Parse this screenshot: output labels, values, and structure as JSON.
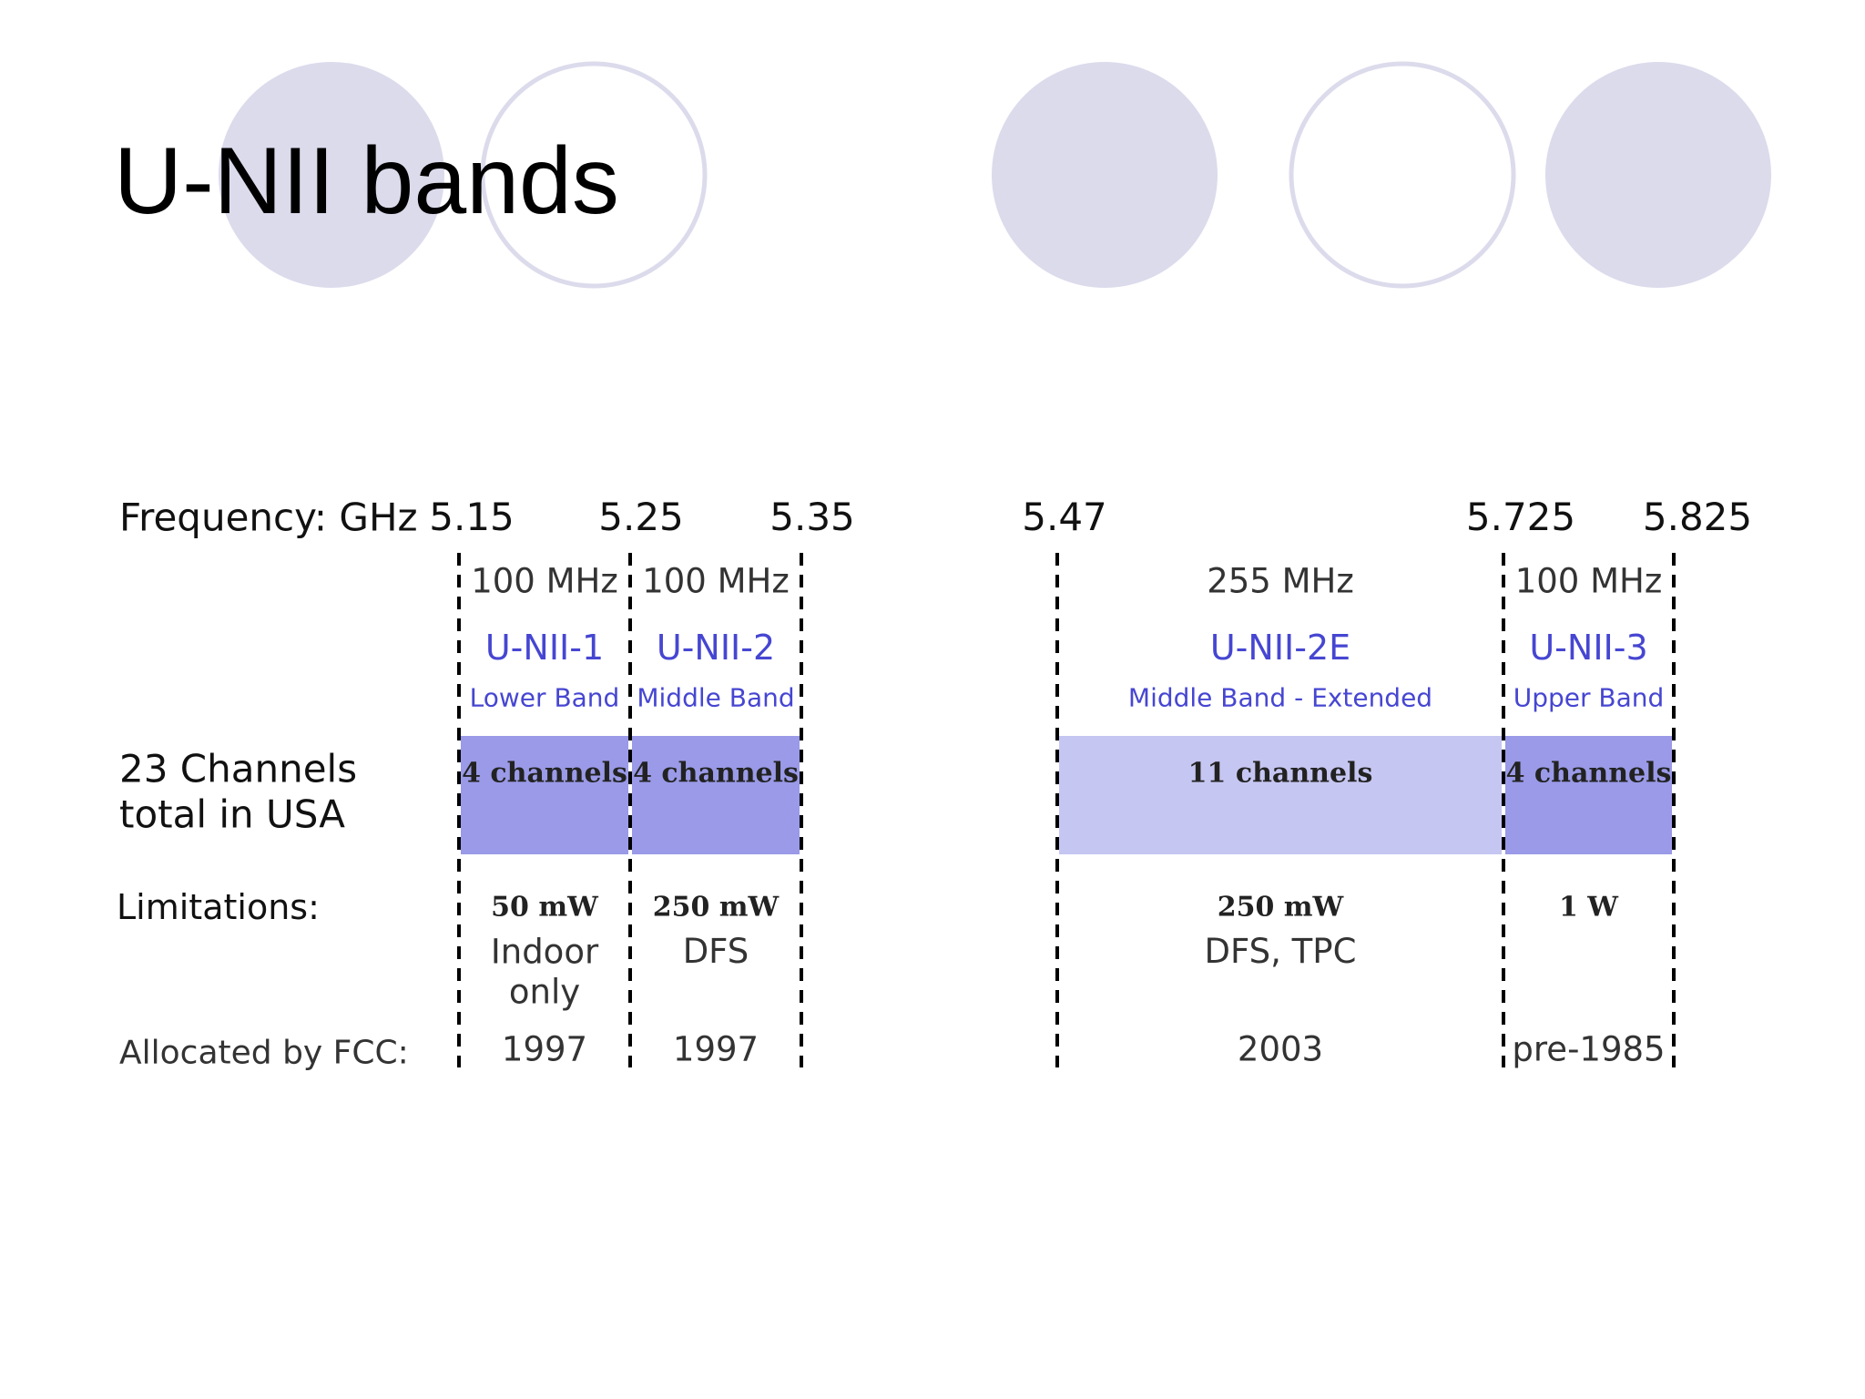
{
  "title": "U-NII bands",
  "frequency_label": "Frequency: GHz",
  "frequencies": [
    "5.15",
    "5.25",
    "5.35",
    "5.47",
    "5.725",
    "5.825"
  ],
  "channels_label": "23 Channels total in USA",
  "limitations_label": "Limitations:",
  "allocated_label": "Allocated by FCC:",
  "bands": [
    {
      "bandwidth": "100 MHz",
      "name": "U-NII-1",
      "subtitle": "Lower Band",
      "channels": "4 channels",
      "power": "50 mW",
      "restriction": "Indoor only",
      "year": "1997"
    },
    {
      "bandwidth": "100 MHz",
      "name": "U-NII-2",
      "subtitle": "Middle Band",
      "channels": "4 channels",
      "power": "250 mW",
      "restriction": "DFS",
      "year": "1997"
    },
    {
      "bandwidth": "255 MHz",
      "name": "U-NII-2E",
      "subtitle": "Middle Band - Extended",
      "channels": "11 channels",
      "power": "250 mW",
      "restriction": "DFS, TPC",
      "year": "2003"
    },
    {
      "bandwidth": "100 MHz",
      "name": "U-NII-3",
      "subtitle": "Upper Band",
      "channels": "4 channels",
      "power": "1 W",
      "year": "pre-1985"
    }
  ]
}
